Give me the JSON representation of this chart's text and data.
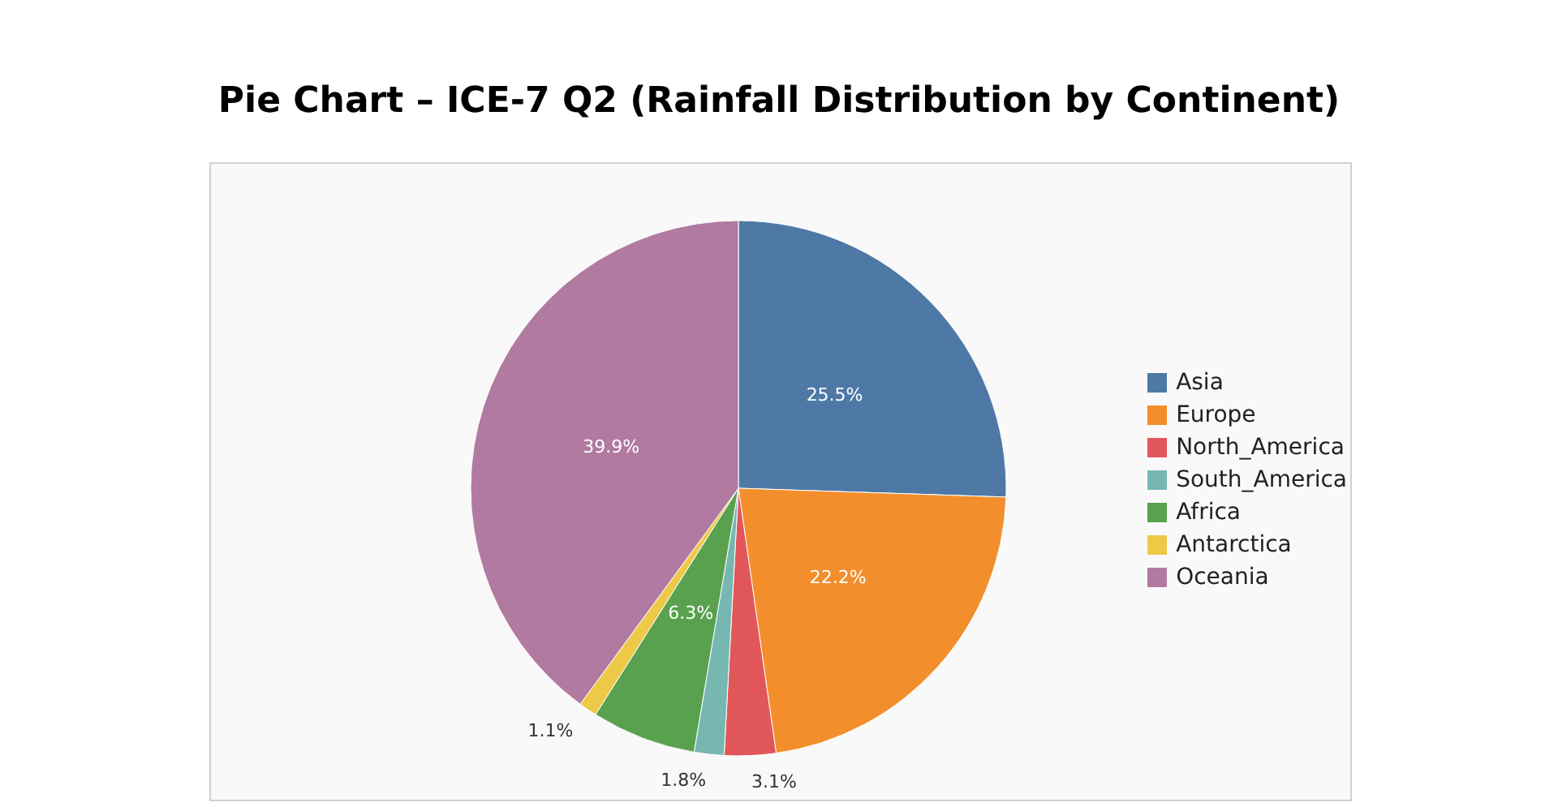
{
  "chart_data": {
    "type": "pie",
    "title": "Pie Chart – ICE-7 Q2 (Rainfall Distribution by Continent)",
    "categories": [
      "Asia",
      "Europe",
      "North_America",
      "South_America",
      "Africa",
      "Antarctica",
      "Oceania"
    ],
    "values": [
      25.5,
      22.2,
      3.1,
      1.8,
      6.3,
      1.1,
      39.9
    ],
    "value_labels": [
      "25.5%",
      "22.2%",
      "3.1%",
      "1.8%",
      "6.3%",
      "1.1%",
      "39.9%"
    ],
    "colors": [
      "#4e79a7",
      "#f28e2b",
      "#e15759",
      "#76b7b2",
      "#59a14f",
      "#edc948",
      "#b07aa1"
    ],
    "legend": "right"
  }
}
